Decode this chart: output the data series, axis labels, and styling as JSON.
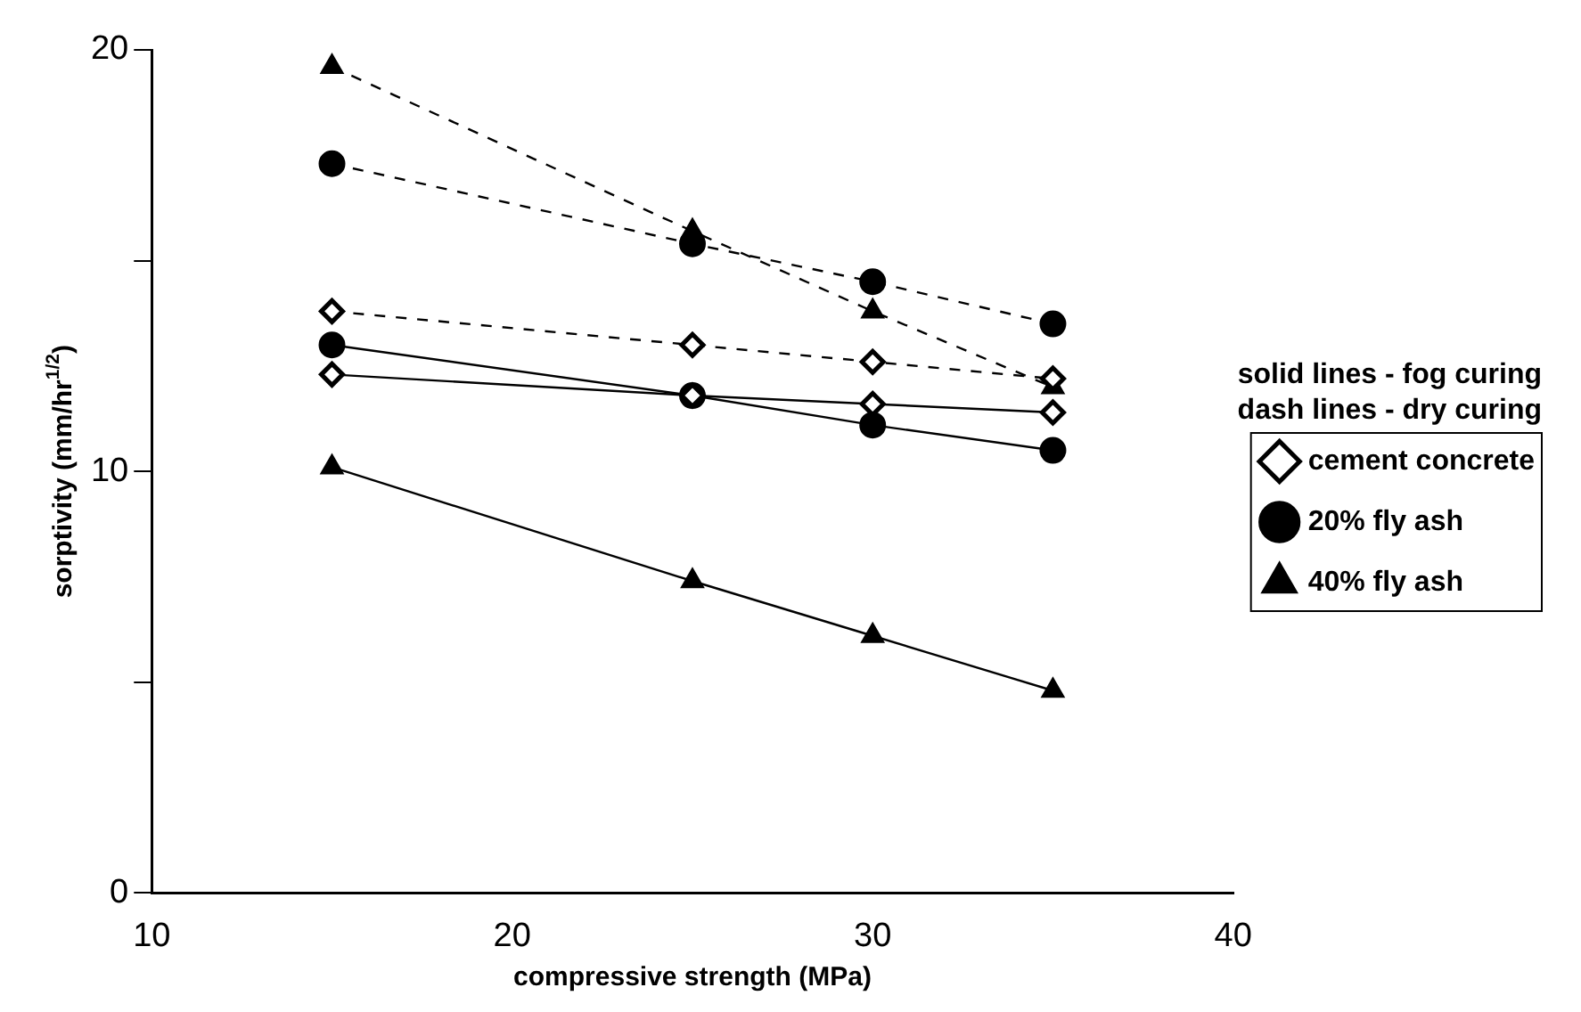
{
  "chart_data": {
    "type": "line",
    "xlabel": "compressive strength (MPa)",
    "ylabel": "sorptivity (mm/hr$^{1/2}$)",
    "x": [
      15,
      25,
      30,
      35
    ],
    "xlim": [
      10,
      40
    ],
    "xticks": [
      10,
      20,
      30,
      40
    ],
    "ylim": [
      0,
      20
    ],
    "yticks": [
      0,
      {
        "value": 5,
        "label": null
      },
      10,
      {
        "value": 15,
        "label": null
      },
      20
    ],
    "grid": false,
    "legend": "right",
    "annotations": [
      "solid lines - fog curing",
      "dash lines - dry curing"
    ],
    "series": [
      {
        "name": "cement concrete",
        "color": "#000000",
        "marker": "diamond",
        "line_style": "solid",
        "values": [
          12.3,
          11.8,
          11.6,
          11.4
        ]
      },
      {
        "name": "20% fly ash",
        "color": "#000000",
        "marker": "circle",
        "line_style": "solid",
        "values": [
          13.0,
          11.8,
          11.1,
          10.5
        ]
      },
      {
        "name": "40% fly ash",
        "color": "#000000",
        "marker": "triangle",
        "line_style": "solid",
        "values": [
          10.1,
          7.4,
          6.1,
          4.8
        ]
      },
      {
        "color": "#000000",
        "marker": "diamond",
        "line_style": "dashed",
        "values": [
          13.8,
          13.0,
          12.6,
          12.2
        ]
      },
      {
        "color": "#000000",
        "marker": "circle",
        "line_style": "dashed",
        "values": [
          17.3,
          15.4,
          14.5,
          13.5
        ]
      },
      {
        "color": "#000000",
        "marker": "triangle",
        "line_style": "dashed",
        "values": [
          19.6,
          15.7,
          13.8,
          12.0
        ]
      }
    ]
  }
}
